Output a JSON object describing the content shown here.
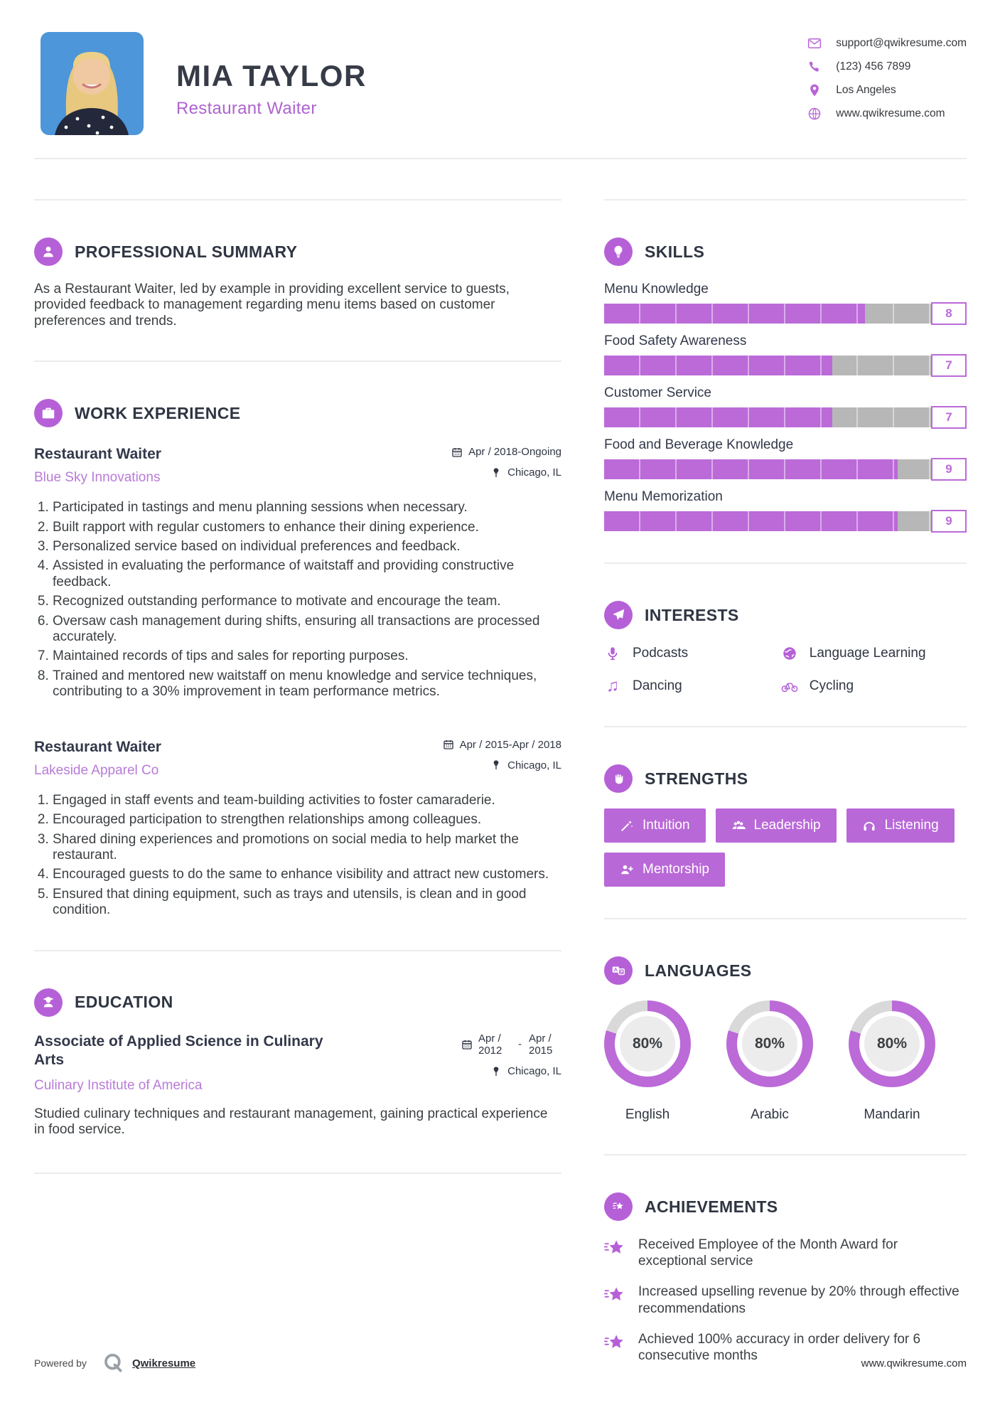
{
  "header": {
    "name": "MIA TAYLOR",
    "title": "Restaurant Waiter",
    "contact": [
      {
        "icon": "email-icon",
        "text": "support@qwikresume.com"
      },
      {
        "icon": "phone-icon",
        "text": "(123) 456 7899"
      },
      {
        "icon": "location-icon",
        "text": "Los Angeles"
      },
      {
        "icon": "globe-icon",
        "text": "www.qwikresume.com"
      }
    ]
  },
  "summary": {
    "heading": "PROFESSIONAL SUMMARY",
    "text": "As a Restaurant Waiter, led by example in providing excellent service to guests, provided feedback to management regarding menu items based on customer preferences and trends."
  },
  "work": {
    "heading": "WORK EXPERIENCE",
    "jobs": [
      {
        "title": "Restaurant Waiter",
        "company": "Blue Sky Innovations",
        "date": "Apr / 2018-Ongoing",
        "location": "Chicago, IL",
        "bullets": [
          "Participated in tastings and menu planning sessions when necessary.",
          "Built rapport with regular customers to enhance their dining experience.",
          "Personalized service based on individual preferences and feedback.",
          "Assisted in evaluating the performance of waitstaff and providing constructive feedback.",
          "Recognized outstanding performance to motivate and encourage the team.",
          "Oversaw cash management during shifts, ensuring all transactions are processed accurately.",
          "Maintained records of tips and sales for reporting purposes.",
          "Trained and mentored new waitstaff on menu knowledge and service techniques, contributing to a 30% improvement in team performance metrics."
        ]
      },
      {
        "title": "Restaurant Waiter",
        "company": "Lakeside Apparel Co",
        "date": "Apr / 2015-Apr / 2018",
        "location": "Chicago, IL",
        "bullets": [
          "Engaged in staff events and team-building activities to foster camaraderie.",
          "Encouraged participation to strengthen relationships among colleagues.",
          "Shared dining experiences and promotions on social media to help market the restaurant.",
          "Encouraged guests to do the same to enhance visibility and attract new customers.",
          "Ensured that dining equipment, such as trays and utensils, is clean and in good condition."
        ]
      }
    ]
  },
  "education": {
    "heading": "EDUCATION",
    "degree": "Associate of Applied Science in Culinary Arts",
    "school": "Culinary Institute of America",
    "date_start": "Apr / 2012",
    "date_end": "Apr / 2015",
    "location": "Chicago, IL",
    "description": "Studied culinary techniques and restaurant management, gaining practical experience in food service."
  },
  "skills": {
    "heading": "SKILLS",
    "items": [
      {
        "name": "Menu Knowledge",
        "level": 8
      },
      {
        "name": "Food Safety Awareness",
        "level": 7
      },
      {
        "name": "Customer Service",
        "level": 7
      },
      {
        "name": "Food and Beverage Knowledge",
        "level": 9
      },
      {
        "name": "Menu Memorization",
        "level": 9
      }
    ]
  },
  "interests": {
    "heading": "INTERESTS",
    "items": [
      {
        "icon": "microphone-icon",
        "label": "Podcasts"
      },
      {
        "icon": "globe-icon",
        "label": "Language Learning"
      },
      {
        "icon": "music-note-icon",
        "label": "Dancing"
      },
      {
        "icon": "bicycle-icon",
        "label": "Cycling"
      }
    ]
  },
  "strengths": {
    "heading": "STRENGTHS",
    "items": [
      {
        "icon": "wand-icon",
        "label": "Intuition"
      },
      {
        "icon": "users-icon",
        "label": "Leadership"
      },
      {
        "icon": "headphones-icon",
        "label": "Listening"
      },
      {
        "icon": "person-plus-icon",
        "label": "Mentorship"
      }
    ]
  },
  "languages": {
    "heading": "LANGUAGES",
    "items": [
      {
        "name": "English",
        "percent": 80,
        "percent_label": "80%"
      },
      {
        "name": "Arabic",
        "percent": 80,
        "percent_label": "80%"
      },
      {
        "name": "Mandarin",
        "percent": 80,
        "percent_label": "80%"
      }
    ]
  },
  "achievements": {
    "heading": "ACHIEVEMENTS",
    "items": [
      "Received Employee of the Month Award for exceptional service",
      "Increased upselling revenue by 20% through effective recommendations",
      "Achieved 100% accuracy in order delivery for 6 consecutive months"
    ]
  },
  "footer": {
    "powered_by": "Powered by",
    "brand": "Qwikresume",
    "website": "www.qwikresume.com"
  },
  "colors": {
    "accent": "#bb6ad8",
    "accent_dark": "#b660d8",
    "bar_track": "#b7b7b7",
    "ring_rest": "#d9d9d9",
    "heading_dark": "#2f3542"
  }
}
